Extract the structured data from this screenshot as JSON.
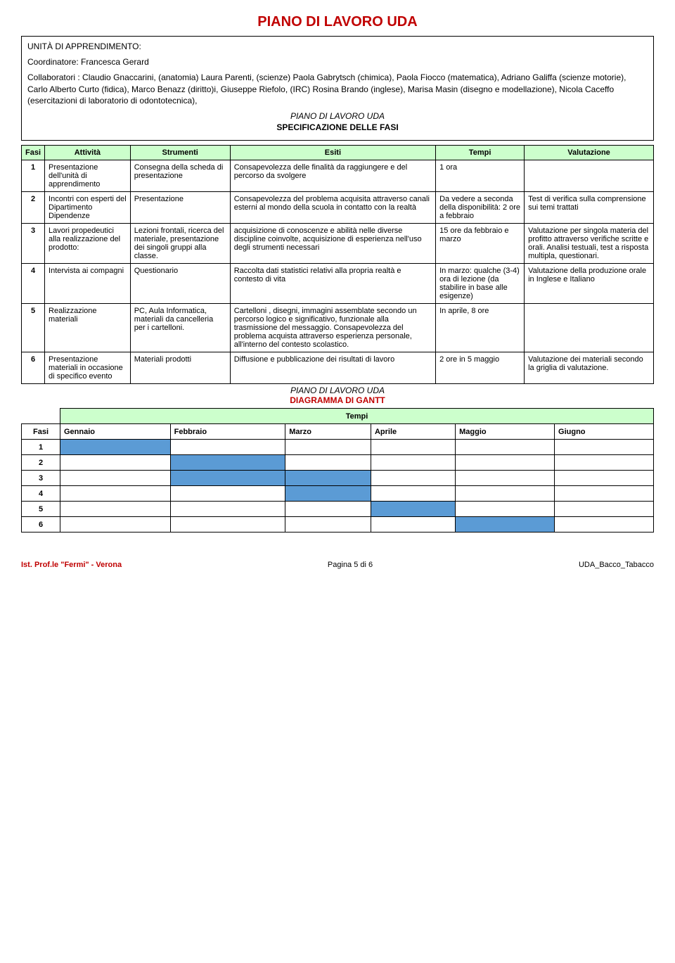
{
  "page_title": "PIANO DI LAVORO UDA",
  "unit_label": "UNITÀ DI APPRENDIMENTO:",
  "coordinator_label": "Coordinatore: Francesca Gerard",
  "collaborators": "Collaboratori : Claudio Gnaccarini, (anatomia) Laura Parenti, (scienze) Paola Gabrytsch (chimica), Paola Fiocco (matematica), Adriano Galiffa (scienze motorie), Carlo Alberto Curto (fidica), Marco Benazz (diritto)i, Giuseppe Riefolo, (IRC) Rosina Brando (inglese), Marisa Masin (disegno e modellazione), Nicola Caceffo (esercitazioni di laboratorio di odontotecnica),",
  "spec_subtitle1": "PIANO DI LAVORO UDA",
  "spec_subtitle2": "SPECIFICAZIONE DELLE FASI",
  "spec_headers": [
    "Fasi",
    "Attività",
    "Strumenti",
    "Esiti",
    "Tempi",
    "Valutazione"
  ],
  "spec_rows": [
    {
      "n": "1",
      "attivita": "Presentazione dell'unità di apprendimento",
      "strumenti": "Consegna della scheda di presentazione",
      "esiti": "Consapevolezza delle finalità da raggiungere e del percorso da svolgere",
      "tempi": "1 ora",
      "valutazione": ""
    },
    {
      "n": "2",
      "attivita": "Incontri con esperti del Dipartimento Dipendenze",
      "strumenti": "Presentazione",
      "esiti": "Consapevolezza del problema acquisita attraverso canali esterni al mondo della scuola in contatto con la realtà",
      "tempi": "Da vedere a seconda della disponibilità: 2 ore a febbraio",
      "valutazione": "Test di verifica sulla comprensione sui temi trattati"
    },
    {
      "n": "3",
      "attivita": "Lavori propedeutici alla realizzazione del prodotto:",
      "strumenti": "Lezioni frontali, ricerca del materiale, presentazione dei singoli gruppi alla classe.",
      "esiti": "acquisizione di conoscenze e abilità nelle diverse discipline coinvolte, acquisizione di esperienza nell'uso degli strumenti necessari",
      "tempi": "15 ore da febbraio e marzo",
      "valutazione": "Valutazione per singola materia del profitto attraverso verifiche scritte e orali. Analisi testuali, test a risposta multipla, questionari."
    },
    {
      "n": "4",
      "attivita": "Intervista ai compagni",
      "strumenti": "Questionario",
      "esiti": "Raccolta dati statistici relativi alla propria realtà e contesto di vita",
      "tempi": "In marzo: qualche (3-4) ora di lezione (da stabilire in base alle esigenze)",
      "valutazione": "Valutazione della produzione orale in Inglese e Italiano"
    },
    {
      "n": "5",
      "attivita": "Realizzazione materiali",
      "strumenti": "PC, Aula Informatica, materiali da cancelleria per i cartelloni.",
      "esiti": "Cartelloni , disegni, immagini assemblate secondo un percorso logico e significativo, funzionale alla trasmissione del messaggio. Consapevolezza del problema acquista attraverso esperienza personale, all'interno del contesto scolastico.",
      "tempi": "In aprile, 8 ore",
      "valutazione": ""
    },
    {
      "n": "6",
      "attivita": "Presentazione materiali in occasione di specifico evento",
      "strumenti": "Materiali prodotti",
      "esiti": "Diffusione e pubblicazione dei risultati di lavoro",
      "tempi": "2 ore in 5 maggio",
      "valutazione": "Valutazione dei materiali secondo la griglia di valutazione."
    }
  ],
  "gantt_sub1": "PIANO DI LAVORO UDA",
  "gantt_sub2": "DIAGRAMMA DI GANTT",
  "gantt_tempi": "Tempi",
  "gantt_fasi": "Fasi",
  "gantt_months": [
    "Gennaio",
    "Febbraio",
    "Marzo",
    "Aprile",
    "Maggio",
    "Giugno"
  ],
  "gantt_rows": [
    {
      "n": "1",
      "fill": [
        0
      ]
    },
    {
      "n": "2",
      "fill": [
        1
      ]
    },
    {
      "n": "3",
      "fill": [
        1,
        2
      ]
    },
    {
      "n": "4",
      "fill": [
        2
      ]
    },
    {
      "n": "5",
      "fill": [
        3
      ]
    },
    {
      "n": "6",
      "fill": [
        4
      ]
    }
  ],
  "colors": {
    "accent": "#c00000",
    "header_bg": "#ccffcc",
    "gantt_fill": "#5b9bd5"
  },
  "footer": {
    "left": "Ist. Prof.le \"Fermi\" - Verona",
    "center": "Pagina 5 di 6",
    "right": "UDA_Bacco_Tabacco"
  }
}
